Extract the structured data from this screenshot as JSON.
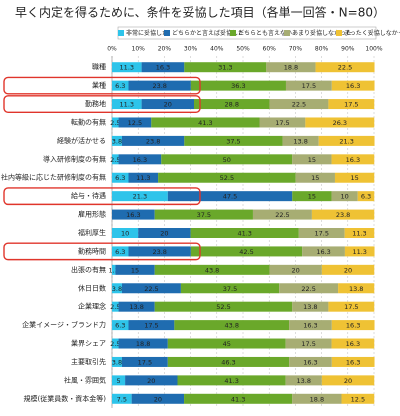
{
  "chart_data": {
    "type": "stacked-bar-horizontal",
    "title": "早く内定を得るために、条件を妥協した項目（各単一回答・N=80）",
    "categories": [
      "職種",
      "業種",
      "勤務地",
      "転勤の有無",
      "経験が活かせる",
      "導入研修制度の有無",
      "社内等級に応じた研修制度の有無",
      "給与・待遇",
      "雇用形態",
      "福利厚生",
      "勤務時間",
      "出張の有無",
      "休日日数",
      "企業理念",
      "企業イメージ・ブランド力",
      "業界シェア",
      "主要取引先",
      "社風・雰囲気",
      "規模(従業員数・資本金等)"
    ],
    "series": [
      {
        "name": "非常に妥協した",
        "color": "#2ec4ea",
        "values": [
          11.3,
          6.3,
          11.3,
          2.5,
          3.8,
          2.5,
          6.3,
          21.3,
          0,
          10.0,
          6.3,
          1.3,
          3.8,
          2.5,
          6.3,
          2.5,
          3.8,
          5.0,
          7.5
        ]
      },
      {
        "name": "どちらかと言えば妥協した",
        "color": "#1f6cb0",
        "values": [
          16.3,
          23.8,
          20.0,
          12.5,
          23.8,
          16.3,
          11.3,
          47.5,
          16.3,
          20.0,
          23.8,
          15.0,
          22.5,
          13.8,
          17.5,
          18.8,
          17.5,
          20.0,
          20.0
        ]
      },
      {
        "name": "どちらとも言えない",
        "color": "#6aa82a",
        "values": [
          31.3,
          36.3,
          28.8,
          41.3,
          37.5,
          50.0,
          52.5,
          15.0,
          37.5,
          41.3,
          42.5,
          43.8,
          37.5,
          52.5,
          43.8,
          45.0,
          46.3,
          41.3,
          41.3
        ]
      },
      {
        "name": "あまり妥協しなかった",
        "color": "#a7ad73",
        "values": [
          18.8,
          17.5,
          22.5,
          17.5,
          13.8,
          15.0,
          15.0,
          10.0,
          22.5,
          17.5,
          16.3,
          20.0,
          22.5,
          13.8,
          16.3,
          17.5,
          16.3,
          13.8,
          18.8
        ]
      },
      {
        "name": "まったく妥協しなかった",
        "color": "#efc234",
        "values": [
          22.5,
          16.3,
          17.5,
          26.3,
          21.3,
          16.3,
          15.0,
          6.3,
          23.8,
          11.3,
          11.3,
          20.0,
          13.8,
          17.5,
          16.3,
          16.3,
          16.3,
          20.0,
          12.5
        ]
      }
    ],
    "xlim": [
      0,
      100
    ],
    "xticks": [
      {
        "value": 0,
        "label": "0%"
      },
      {
        "value": 10,
        "label": "10%"
      },
      {
        "value": 20,
        "label": "20%"
      },
      {
        "value": 30,
        "label": "30%"
      },
      {
        "value": 40,
        "label": "40%"
      },
      {
        "value": 50,
        "label": "50%"
      },
      {
        "value": 60,
        "label": "60%"
      },
      {
        "value": 70,
        "label": "70%"
      },
      {
        "value": 80,
        "label": "80%"
      },
      {
        "value": 90,
        "label": "90%"
      },
      {
        "value": 100,
        "label": "100%"
      }
    ],
    "grid": true
  }
}
